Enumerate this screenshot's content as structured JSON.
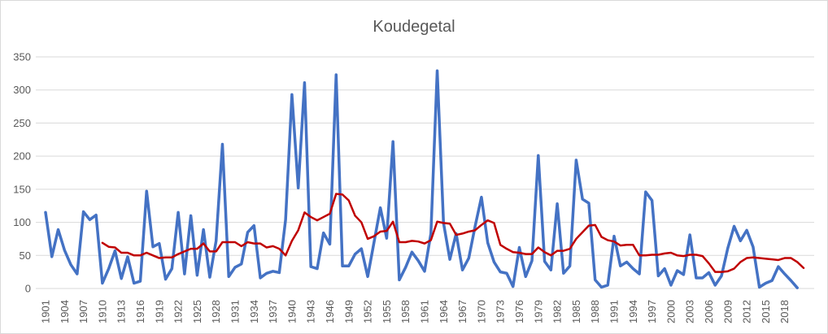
{
  "chart_data": {
    "type": "line",
    "title": "Koudegetal",
    "xlabel": "",
    "ylabel": "",
    "ylim": [
      0,
      350
    ],
    "yticks": [
      0,
      50,
      100,
      150,
      200,
      250,
      300,
      350
    ],
    "grid": true,
    "legend": "none",
    "x_tick_labels": [
      "1901",
      "1904",
      "1907",
      "1910",
      "1913",
      "1916",
      "1919",
      "1922",
      "1925",
      "1928",
      "1931",
      "1934",
      "1937",
      "1940",
      "1943",
      "1946",
      "1949",
      "1952",
      "1955",
      "1958",
      "1961",
      "1964",
      "1967",
      "1970",
      "1973",
      "1976",
      "1979",
      "1982",
      "1985",
      "1988",
      "1991",
      "1994",
      "1997",
      "2000",
      "2003",
      "2006",
      "2009",
      "2012",
      "2015",
      "2018"
    ],
    "x": [
      1901,
      1902,
      1903,
      1904,
      1905,
      1906,
      1907,
      1908,
      1909,
      1910,
      1911,
      1912,
      1913,
      1914,
      1915,
      1916,
      1917,
      1918,
      1919,
      1920,
      1921,
      1922,
      1923,
      1924,
      1925,
      1926,
      1927,
      1928,
      1929,
      1930,
      1931,
      1932,
      1933,
      1934,
      1935,
      1936,
      1937,
      1938,
      1939,
      1940,
      1941,
      1942,
      1943,
      1944,
      1945,
      1946,
      1947,
      1948,
      1949,
      1950,
      1951,
      1952,
      1953,
      1954,
      1955,
      1956,
      1957,
      1958,
      1959,
      1960,
      1961,
      1962,
      1963,
      1964,
      1965,
      1966,
      1967,
      1968,
      1969,
      1970,
      1971,
      1972,
      1973,
      1974,
      1975,
      1976,
      1977,
      1978,
      1979,
      1980,
      1981,
      1982,
      1983,
      1984,
      1985,
      1986,
      1987,
      1988,
      1989,
      1990,
      1991,
      1992,
      1993,
      1994,
      1995,
      1996,
      1997,
      1998,
      1999,
      2000,
      2001,
      2002,
      2003,
      2004,
      2005,
      2006,
      2007,
      2008,
      2009,
      2010,
      2011,
      2012,
      2013,
      2014,
      2015,
      2016,
      2017,
      2018,
      2019,
      2020,
      2021
    ],
    "series": [
      {
        "color": "#4472c4",
        "values": [
          115,
          48,
          89,
          58,
          36,
          22,
          116,
          104,
          111,
          8,
          30,
          57,
          15,
          48,
          8,
          11,
          147,
          63,
          68,
          14,
          30,
          115,
          22,
          110,
          20,
          89,
          17,
          72,
          218,
          18,
          32,
          37,
          85,
          95,
          16,
          23,
          26,
          24,
          104,
          293,
          152,
          311,
          33,
          30,
          84,
          67,
          323,
          34,
          34,
          52,
          60,
          18,
          70,
          122,
          76,
          222,
          13,
          32,
          55,
          42,
          26,
          83,
          329,
          99,
          44,
          83,
          28,
          46,
          94,
          138,
          69,
          40,
          25,
          23,
          3,
          62,
          18,
          42,
          201,
          41,
          28,
          128,
          23,
          34,
          194,
          135,
          129,
          13,
          2,
          5,
          79,
          34,
          40,
          30,
          22,
          146,
          133,
          19,
          30,
          5,
          27,
          21,
          81,
          16,
          16,
          24,
          5,
          19,
          61,
          94,
          72,
          88,
          63,
          2,
          8,
          12,
          33,
          22,
          12,
          1,
          null
        ]
      },
      {
        "color": "#c00000",
        "values": [
          null,
          null,
          null,
          null,
          null,
          null,
          null,
          null,
          null,
          69,
          63,
          62,
          54,
          54,
          50,
          50,
          54,
          50,
          46,
          47,
          47,
          52,
          56,
          60,
          60,
          68,
          56,
          56,
          70,
          70,
          70,
          64,
          70,
          68,
          68,
          62,
          64,
          60,
          50,
          72,
          88,
          115,
          108,
          103,
          108,
          113,
          143,
          142,
          133,
          110,
          100,
          75,
          79,
          86,
          87,
          101,
          70,
          70,
          72,
          71,
          68,
          73,
          101,
          99,
          98,
          81,
          83,
          86,
          88,
          96,
          103,
          99,
          66,
          60,
          55,
          54,
          52,
          52,
          62,
          55,
          50,
          57,
          57,
          60,
          75,
          85,
          95,
          96,
          78,
          73,
          71,
          65,
          66,
          66,
          50,
          50,
          51,
          51,
          53,
          54,
          50,
          49,
          51,
          51,
          49,
          38,
          25,
          25,
          26,
          30,
          40,
          46,
          47,
          46,
          45,
          44,
          43,
          46,
          46,
          40,
          31
        ]
      }
    ]
  }
}
